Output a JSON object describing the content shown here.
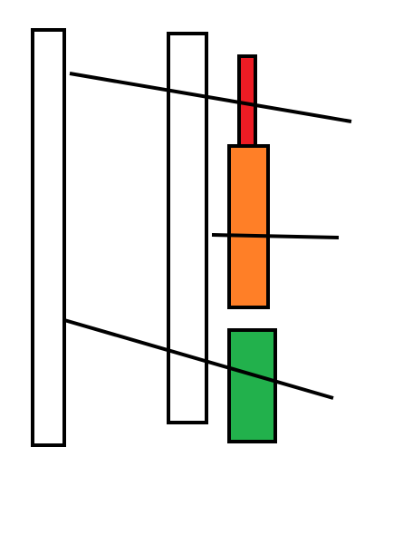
{
  "diagram": {
    "colors": {
      "background": "#ffffff",
      "stroke": "#000000",
      "white_fill": "#ffffff",
      "red_fill": "#ed1c24",
      "orange_fill": "#ff7f27",
      "green_fill": "#22b14c"
    }
  }
}
